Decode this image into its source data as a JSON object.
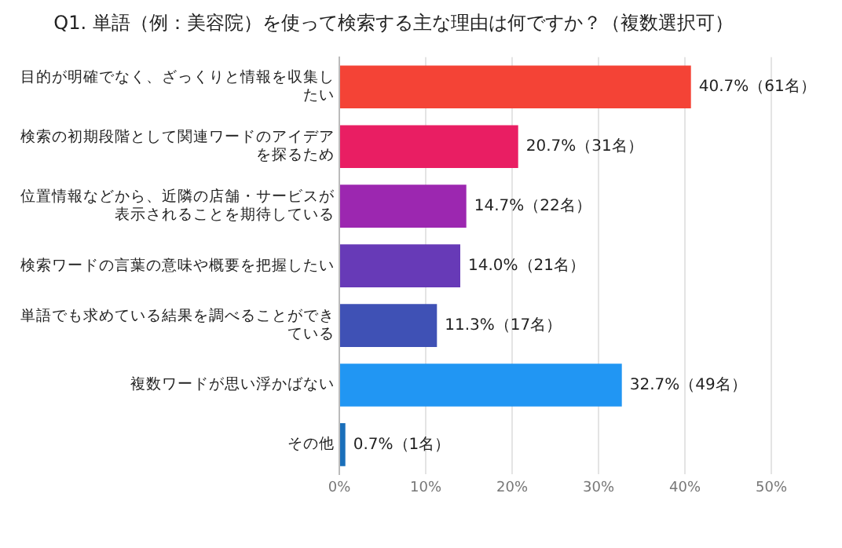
{
  "chart_data": {
    "type": "bar",
    "orientation": "horizontal",
    "title": "Q1. 単語（例：美容院）を使って検索する主な理由は何ですか？（複数選択可）",
    "categories": [
      "目的が明確でなく、ざっくりと情報を収集したい",
      "検索の初期段階として関連ワードのアイデアを探るため",
      "位置情報などから、近隣の店舗・サービスが表示されることを期待している",
      "検索ワードの言葉の意味や概要を把握したい",
      "単語でも求めている結果を調べることができている",
      "複数ワードが思い浮かばない",
      "その他"
    ],
    "values": [
      40.7,
      20.7,
      14.7,
      14.0,
      11.3,
      32.7,
      0.7
    ],
    "colors": [
      "#f44336",
      "#e91e63",
      "#9c27b0",
      "#673ab7",
      "#3f51b5",
      "#2196f3",
      "#1a6fba"
    ],
    "value_labels": [
      "40.7%（61名）",
      "20.7%（31名）",
      "14.7%（22名）",
      "14.0%（21名）",
      "11.3%（17名）",
      "32.7%（49名）",
      "0.7%（1名）"
    ],
    "xlim": [
      0,
      50
    ],
    "xticks": [
      {
        "value": 0,
        "label": "0%"
      },
      {
        "value": 10,
        "label": "10%"
      },
      {
        "value": 20,
        "label": "20%"
      },
      {
        "value": 30,
        "label": "30%"
      },
      {
        "value": 40,
        "label": "40%"
      },
      {
        "value": 50,
        "label": "50%"
      }
    ],
    "grid": "x",
    "legend": false
  }
}
